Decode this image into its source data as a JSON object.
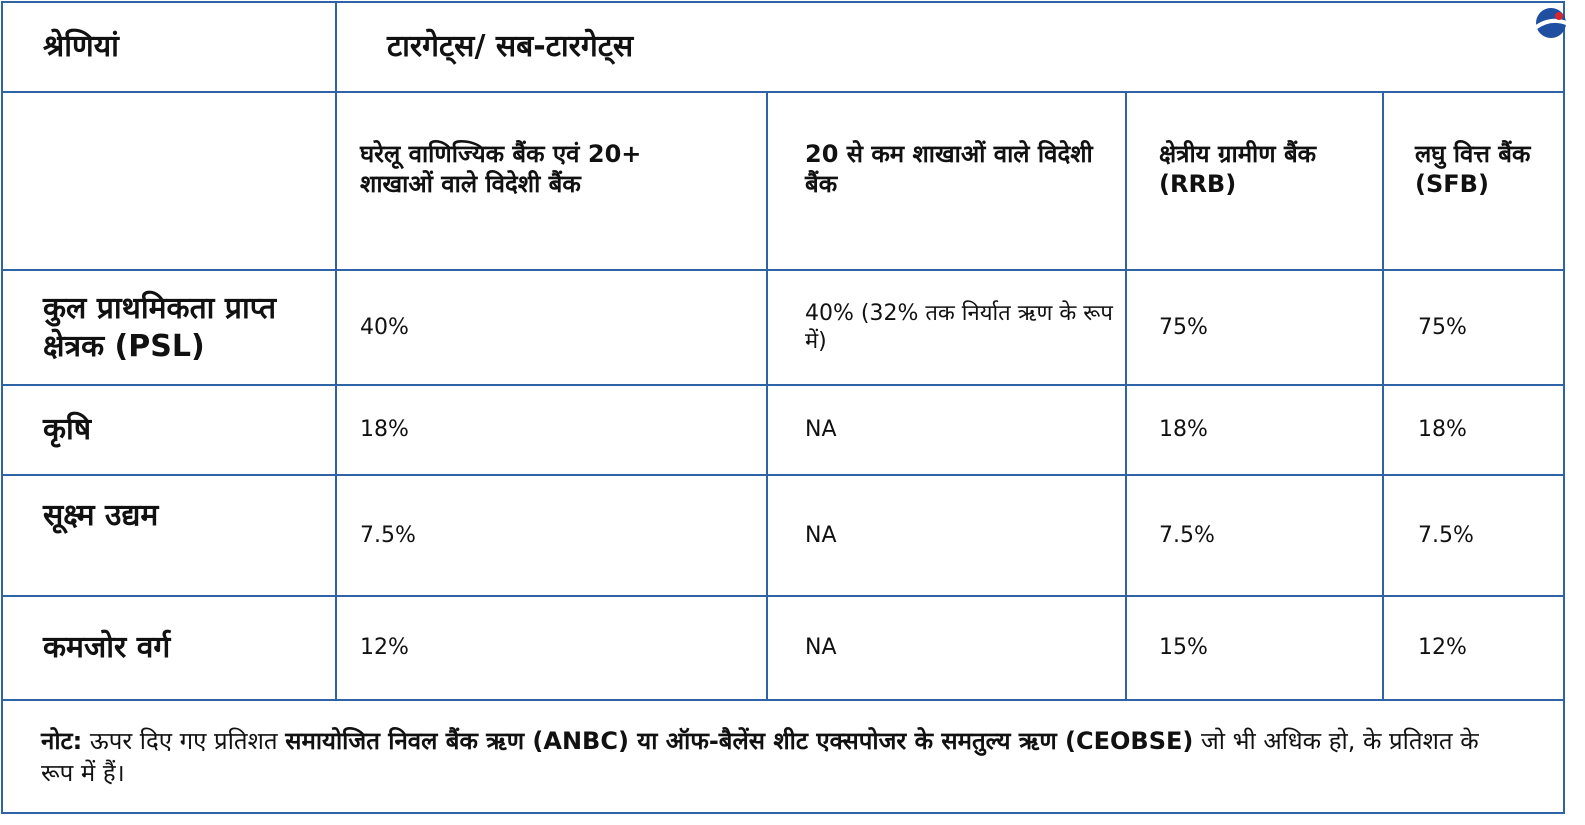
{
  "header": {
    "category_label": "श्रेणियां",
    "targets_label": "टारगेट्स/ सब-टारगेट्स"
  },
  "columns": [
    "घरेलू वाणिज्यिक बैंक एवं 20+ शाखाओं वाले विदेशी बैंक",
    "20 से कम शाखाओं वाले विदेशी बैंक",
    "क्षेत्रीय ग्रामीण बैंक (RRB)",
    "लघु वित्त बैंक (SFB)"
  ],
  "rows": [
    {
      "category": "कुल प्राथमिकता प्राप्त क्षेत्रक (PSL)",
      "values": [
        "40%",
        "40% (32% तक निर्यात ऋण के रूप में)",
        "75%",
        "75%"
      ]
    },
    {
      "category": "कृषि",
      "values": [
        "18%",
        "NA",
        "18%",
        "18%"
      ]
    },
    {
      "category": "सूक्ष्म उद्यम",
      "values": [
        "7.5%",
        "NA",
        "7.5%",
        "7.5%"
      ]
    },
    {
      "category": "कमजोर वर्ग",
      "values": [
        "12%",
        "NA",
        "15%",
        "12%"
      ]
    }
  ],
  "note": {
    "label": "नोट:",
    "text1": " ऊपर दिए गए प्रतिशत ",
    "bold1": "समायोजित निवल बैंक ऋण (ANBC) या ऑफ-बैलेंस शीट एक्सपोजर के समतुल्य ऋण (CEOBSE)",
    "text2": " जो भी अधिक हो, के प्रतिशत के रूप में हैं।"
  },
  "colors": {
    "border": "#2e63a6",
    "logo_blue": "#1f4fa0",
    "logo_red": "#d9262b"
  },
  "icons": {
    "logo": "brand-logo-icon"
  }
}
